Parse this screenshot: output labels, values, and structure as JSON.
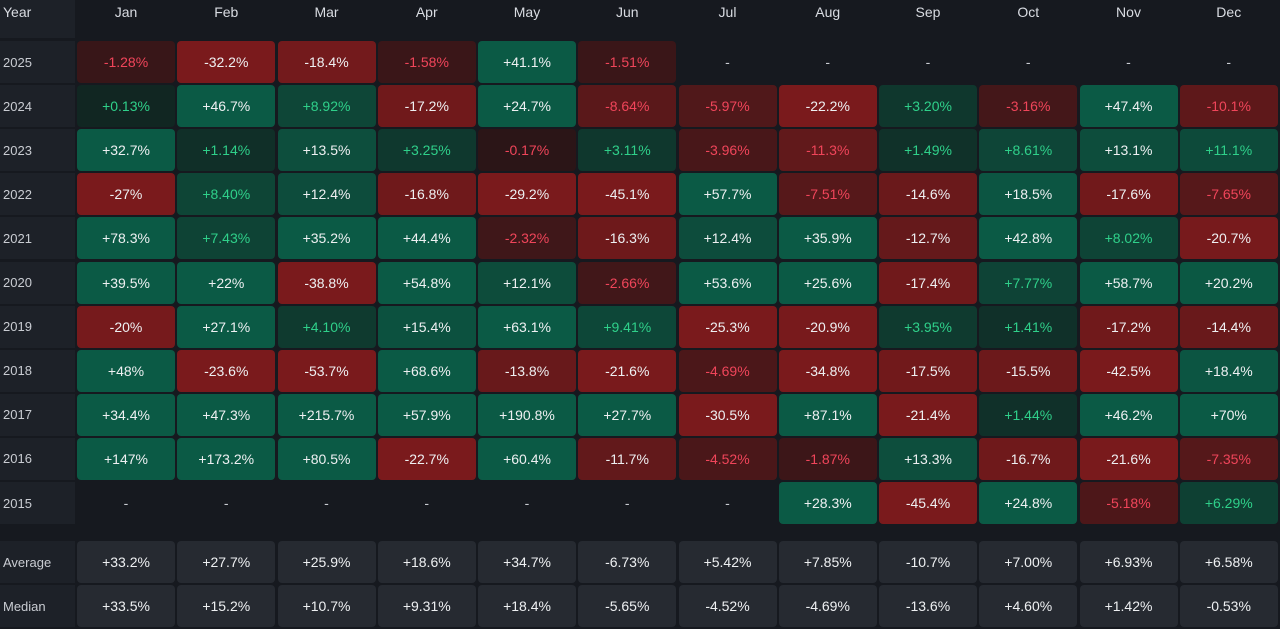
{
  "chart_data": {
    "type": "heatmap",
    "row_header": "Year",
    "columns": [
      "Jan",
      "Feb",
      "Mar",
      "Apr",
      "May",
      "Jun",
      "Jul",
      "Aug",
      "Sep",
      "Oct",
      "Nov",
      "Dec"
    ],
    "rows": [
      {
        "label": "2025",
        "values": [
          -1.28,
          -32.2,
          -18.4,
          -1.58,
          41.1,
          -1.51,
          null,
          null,
          null,
          null,
          null,
          null
        ],
        "text": [
          "-1.28%",
          "-32.2%",
          "-18.4%",
          "-1.58%",
          "+41.1%",
          "-1.51%",
          "-",
          "-",
          "-",
          "-",
          "-",
          "-"
        ]
      },
      {
        "label": "2024",
        "values": [
          0.13,
          46.7,
          8.92,
          -17.2,
          24.7,
          -8.64,
          -5.97,
          -22.2,
          3.2,
          -3.16,
          47.4,
          -10.1
        ],
        "text": [
          "+0.13%",
          "+46.7%",
          "+8.92%",
          "-17.2%",
          "+24.7%",
          "-8.64%",
          "-5.97%",
          "-22.2%",
          "+3.20%",
          "-3.16%",
          "+47.4%",
          "-10.1%"
        ]
      },
      {
        "label": "2023",
        "values": [
          32.7,
          1.14,
          13.5,
          3.25,
          -0.17,
          3.11,
          -3.96,
          -11.3,
          1.49,
          8.61,
          13.1,
          11.1
        ],
        "text": [
          "+32.7%",
          "+1.14%",
          "+13.5%",
          "+3.25%",
          "-0.17%",
          "+3.11%",
          "-3.96%",
          "-11.3%",
          "+1.49%",
          "+8.61%",
          "+13.1%",
          "+11.1%"
        ]
      },
      {
        "label": "2022",
        "values": [
          -27,
          8.4,
          12.4,
          -16.8,
          -29.2,
          -45.1,
          57.7,
          -7.51,
          -14.6,
          18.5,
          -17.6,
          -7.65
        ],
        "text": [
          "-27%",
          "+8.40%",
          "+12.4%",
          "-16.8%",
          "-29.2%",
          "-45.1%",
          "+57.7%",
          "-7.51%",
          "-14.6%",
          "+18.5%",
          "-17.6%",
          "-7.65%"
        ]
      },
      {
        "label": "2021",
        "values": [
          78.3,
          7.43,
          35.2,
          44.4,
          -2.32,
          -16.3,
          12.4,
          35.9,
          -12.7,
          42.8,
          8.02,
          -20.7
        ],
        "text": [
          "+78.3%",
          "+7.43%",
          "+35.2%",
          "+44.4%",
          "-2.32%",
          "-16.3%",
          "+12.4%",
          "+35.9%",
          "-12.7%",
          "+42.8%",
          "+8.02%",
          "-20.7%"
        ]
      },
      {
        "label": "2020",
        "values": [
          39.5,
          22,
          -38.8,
          54.8,
          12.1,
          -2.66,
          53.6,
          25.6,
          -17.4,
          7.77,
          58.7,
          20.2
        ],
        "text": [
          "+39.5%",
          "+22%",
          "-38.8%",
          "+54.8%",
          "+12.1%",
          "-2.66%",
          "+53.6%",
          "+25.6%",
          "-17.4%",
          "+7.77%",
          "+58.7%",
          "+20.2%"
        ]
      },
      {
        "label": "2019",
        "values": [
          -20,
          27.1,
          4.1,
          15.4,
          63.1,
          9.41,
          -25.3,
          -20.9,
          3.95,
          1.41,
          -17.2,
          -14.4
        ],
        "text": [
          "-20%",
          "+27.1%",
          "+4.10%",
          "+15.4%",
          "+63.1%",
          "+9.41%",
          "-25.3%",
          "-20.9%",
          "+3.95%",
          "+1.41%",
          "-17.2%",
          "-14.4%"
        ]
      },
      {
        "label": "2018",
        "values": [
          48,
          -23.6,
          -53.7,
          68.6,
          -13.8,
          -21.6,
          -4.69,
          -34.8,
          -17.5,
          -15.5,
          -42.5,
          18.4
        ],
        "text": [
          "+48%",
          "-23.6%",
          "-53.7%",
          "+68.6%",
          "-13.8%",
          "-21.6%",
          "-4.69%",
          "-34.8%",
          "-17.5%",
          "-15.5%",
          "-42.5%",
          "+18.4%"
        ]
      },
      {
        "label": "2017",
        "values": [
          34.4,
          47.3,
          215.7,
          57.9,
          190.8,
          27.7,
          -30.5,
          87.1,
          -21.4,
          1.44,
          46.2,
          70
        ],
        "text": [
          "+34.4%",
          "+47.3%",
          "+215.7%",
          "+57.9%",
          "+190.8%",
          "+27.7%",
          "-30.5%",
          "+87.1%",
          "-21.4%",
          "+1.44%",
          "+46.2%",
          "+70%"
        ]
      },
      {
        "label": "2016",
        "values": [
          147,
          173.2,
          80.5,
          -22.7,
          60.4,
          -11.7,
          -4.52,
          -1.87,
          13.3,
          -16.7,
          -21.6,
          -7.35
        ],
        "text": [
          "+147%",
          "+173.2%",
          "+80.5%",
          "-22.7%",
          "+60.4%",
          "-11.7%",
          "-4.52%",
          "-1.87%",
          "+13.3%",
          "-16.7%",
          "-21.6%",
          "-7.35%"
        ]
      },
      {
        "label": "2015",
        "values": [
          null,
          null,
          null,
          null,
          null,
          null,
          null,
          28.3,
          -45.4,
          24.8,
          -5.18,
          6.29
        ],
        "text": [
          "-",
          "-",
          "-",
          "-",
          "-",
          "-",
          "-",
          "+28.3%",
          "-45.4%",
          "+24.8%",
          "-5.18%",
          "+6.29%"
        ]
      }
    ],
    "summary_rows": [
      {
        "label": "Average",
        "values": [
          33.2,
          27.7,
          25.9,
          18.6,
          34.7,
          -6.73,
          5.42,
          7.85,
          -10.7,
          7.0,
          6.93,
          6.58
        ],
        "text": [
          "+33.2%",
          "+27.7%",
          "+25.9%",
          "+18.6%",
          "+34.7%",
          "-6.73%",
          "+5.42%",
          "+7.85%",
          "-10.7%",
          "+7.00%",
          "+6.93%",
          "+6.58%"
        ]
      },
      {
        "label": "Median",
        "values": [
          33.5,
          15.2,
          10.7,
          9.31,
          18.4,
          -5.65,
          -4.52,
          -4.69,
          -13.6,
          4.6,
          1.42,
          -0.53
        ],
        "text": [
          "+33.5%",
          "+15.2%",
          "+10.7%",
          "+9.31%",
          "+18.4%",
          "-5.65%",
          "-4.52%",
          "-4.69%",
          "-13.6%",
          "+4.60%",
          "+1.42%",
          "-0.53%"
        ]
      }
    ],
    "unit": "%",
    "colors": {
      "background": "#16191f",
      "positive_strong": "#0b5a45",
      "positive_weak": "#12221f",
      "negative_strong": "#7a1a1c",
      "negative_weak": "#231517",
      "positive_text_light": "#2fd08a",
      "negative_text_light": "#f0455a",
      "strong_text": "#eef0f2",
      "summary_cell": "#262a31",
      "empty_text": "#c9ccd2"
    }
  }
}
